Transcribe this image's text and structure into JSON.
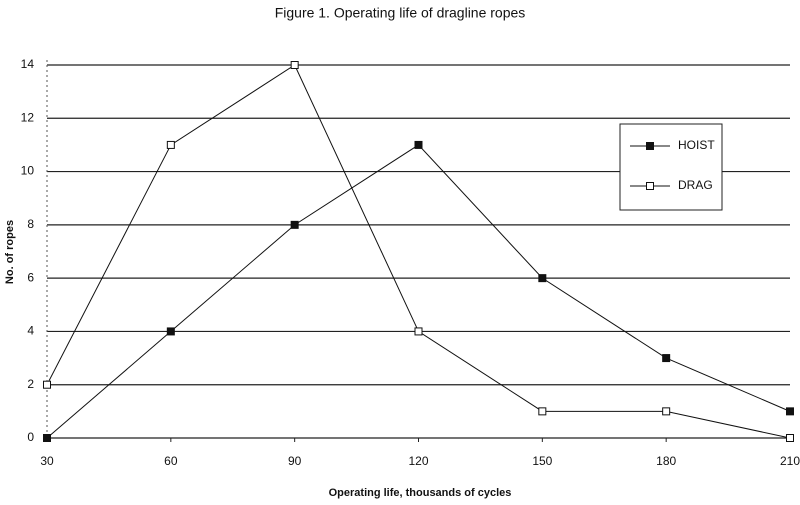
{
  "chart_data": {
    "type": "line",
    "title": "Figure 1. Operating life of dragline ropes",
    "x_label": "Operating life, thousands of cycles",
    "y_label": "No. of ropes",
    "x": [
      30,
      60,
      90,
      120,
      150,
      180,
      210
    ],
    "series": [
      {
        "name": "HOIST",
        "color": "#111111",
        "marker": "filled",
        "values": [
          0,
          4,
          8,
          11,
          6,
          3,
          1
        ]
      },
      {
        "name": "DRAG",
        "color": "#111111",
        "marker": "open",
        "values": [
          2,
          11,
          14,
          4,
          1,
          1,
          0
        ]
      }
    ],
    "xlim": [
      30,
      210
    ],
    "xticks": [
      30,
      60,
      90,
      120,
      150,
      180,
      210
    ],
    "ylim": [
      0,
      14
    ],
    "yticks": [
      0,
      2,
      4,
      6,
      8,
      10,
      12,
      14
    ],
    "grid": true,
    "legend": "upper right"
  }
}
